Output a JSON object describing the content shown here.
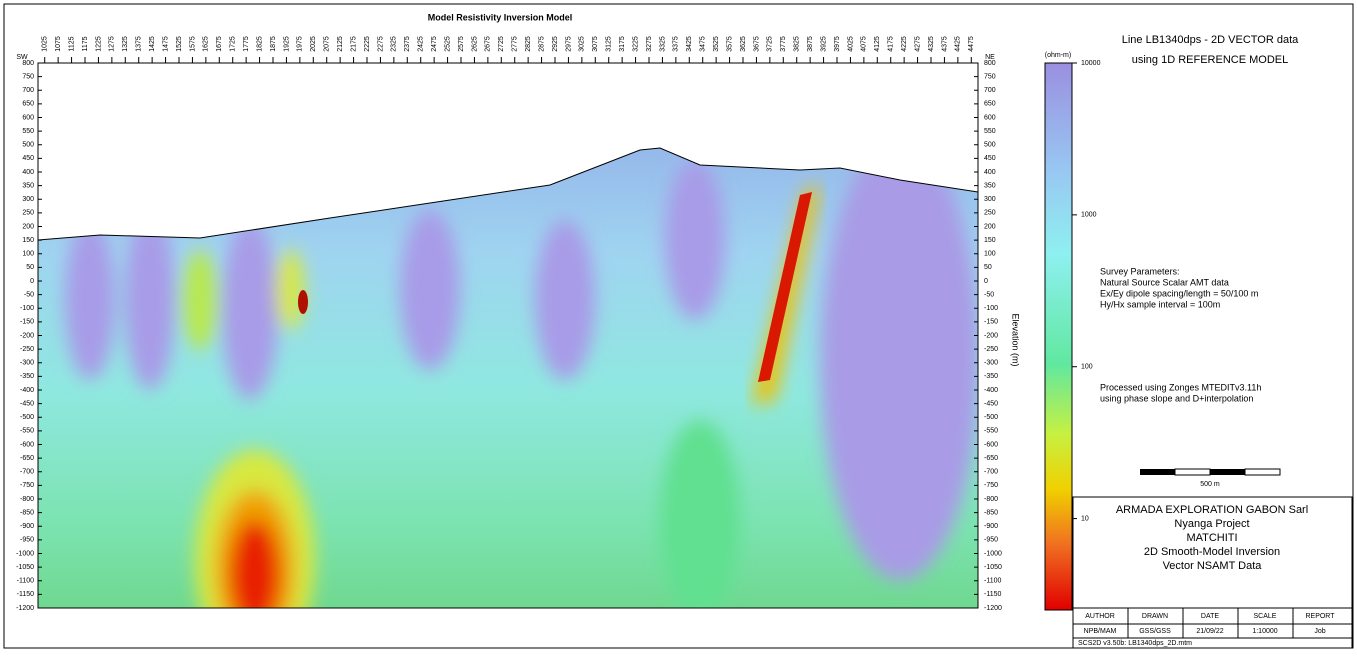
{
  "section": {
    "title": "Model Resistivity Inversion Model",
    "left_end": "SW",
    "right_end": "NE",
    "y_label": "Elevation (m)",
    "xlim": [
      1000,
      4500
    ],
    "stations": [
      1025,
      1075,
      1125,
      1175,
      1225,
      1275,
      1325,
      1375,
      1425,
      1475,
      1525,
      1575,
      1625,
      1675,
      1725,
      1775,
      1825,
      1875,
      1925,
      1975,
      2025,
      2075,
      2125,
      2175,
      2225,
      2275,
      2325,
      2375,
      2425,
      2475,
      2525,
      2575,
      2625,
      2675,
      2725,
      2775,
      2825,
      2875,
      2925,
      2975,
      3025,
      3075,
      3125,
      3175,
      3225,
      3275,
      3325,
      3375,
      3425,
      3475,
      3525,
      3575,
      3625,
      3675,
      3725,
      3775,
      3825,
      3875,
      3925,
      3975,
      4025,
      4075,
      4125,
      4175,
      4225,
      4275,
      4325,
      4375,
      4425,
      4475
    ],
    "ylim": [
      -1200,
      800
    ],
    "yticks": [
      800,
      750,
      700,
      650,
      600,
      550,
      500,
      450,
      400,
      350,
      300,
      250,
      200,
      150,
      100,
      50,
      0,
      -50,
      -100,
      -150,
      -200,
      -250,
      -300,
      -350,
      -400,
      -450,
      -500,
      -550,
      -600,
      -650,
      -700,
      -750,
      -800,
      -850,
      -900,
      -950,
      -1000,
      -1050,
      -1100,
      -1150,
      -1200
    ]
  },
  "colorbar": {
    "unit": "(ohm-m)",
    "lim": [
      2.5,
      10000
    ],
    "ticks": [
      10000,
      1000,
      100,
      10
    ],
    "log": true
  },
  "header": {
    "line1": "Line LB1340dps - 2D VECTOR data",
    "line2": "using 1D REFERENCE MODEL"
  },
  "survey": [
    "Survey Parameters:",
    "Natural Source Scalar AMT data",
    "Ex/Ey dipole spacing/length = 50/100 m",
    "Hy/Hx sample interval = 100m"
  ],
  "processing": [
    "Processed using Zonges MTEDITv3.11h",
    "using phase slope and D+interpolation"
  ],
  "scale_bar": "500 m",
  "title_block": [
    "ARMADA EXPLORATION GABON Sarl",
    "Nyanga Project",
    "MATCHITI",
    "2D Smooth-Model Inversion",
    "Vector NSAMT Data"
  ],
  "table": {
    "header": [
      "AUTHOR",
      "DRAWN",
      "DATE",
      "SCALE",
      "REPORT"
    ],
    "row": [
      "NPB/MAM",
      "GSS/GSS",
      "21/09/22",
      "1:10000",
      "Job"
    ],
    "footer": "SCS2D v3.50b: LB1340dps_2D.mtm"
  }
}
